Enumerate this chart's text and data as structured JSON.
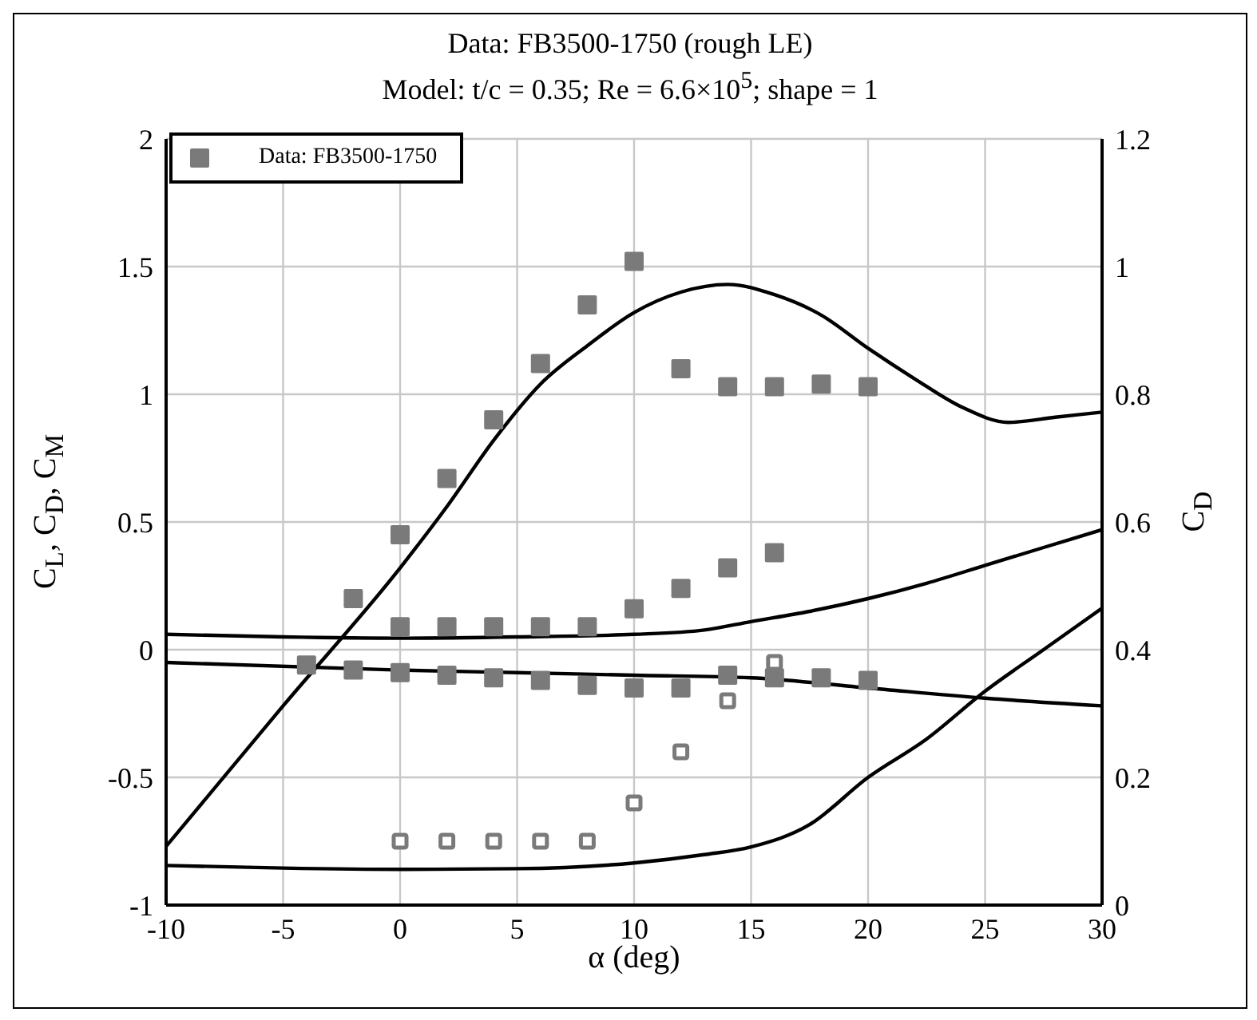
{
  "chart_data": {
    "type": "scatter",
    "title": "Data: FB3500-1750 (rough LE)",
    "subtitle": "Model: t/c = 0.35; Re = 6.6×10$^{5}$; shape = 1",
    "xlabel": "α (deg)",
    "ylabel": "C$_{L}$, C$_{D}$, C$_{M}$",
    "y2label": "C$_{D}$",
    "xlim": [
      -10,
      30
    ],
    "xticks": [
      -10,
      -5,
      0,
      5,
      10,
      15,
      20,
      25,
      30
    ],
    "ylim": [
      -1,
      2
    ],
    "yticks": [
      -1,
      -0.5,
      0,
      0.5,
      1,
      1.5,
      2
    ],
    "y2lim": [
      0,
      1.2
    ],
    "y2ticks": [
      0,
      0.2,
      0.4,
      0.6,
      0.8,
      1,
      1.2
    ],
    "grid": true,
    "legend": "top left",
    "series": [
      {
        "name": "Data: FB3500-1750",
        "marker": "square",
        "color": "#7a7a7a",
        "x": [
          -2,
          0,
          2,
          4,
          6,
          8,
          10,
          12,
          14,
          16,
          18,
          20
        ],
        "values": [
          0.2,
          0.45,
          0.67,
          0.9,
          1.12,
          1.35,
          1.52,
          1.1,
          1.03,
          1.03,
          1.04,
          1.03
        ]
      },
      {
        "marker": "square",
        "color": "#7a7a7a",
        "x": [
          0,
          2,
          4,
          6,
          8,
          10,
          12,
          14,
          16
        ],
        "values": [
          0.09,
          0.09,
          0.09,
          0.09,
          0.09,
          0.16,
          0.24,
          0.32,
          0.38
        ]
      },
      {
        "marker": "square",
        "color": "#7a7a7a",
        "x": [
          -4,
          -2,
          0,
          2,
          4,
          6,
          8,
          10,
          12,
          14,
          16,
          18,
          20
        ],
        "values": [
          -0.06,
          -0.08,
          -0.09,
          -0.1,
          -0.11,
          -0.12,
          -0.14,
          -0.15,
          -0.15,
          -0.1,
          -0.11,
          -0.11,
          -0.12
        ]
      },
      {
        "marker": "square",
        "color": "#7a7a7a",
        "axis": "y2",
        "x": [
          0,
          2,
          4,
          6,
          8,
          10,
          12,
          14,
          16
        ],
        "values": [
          0.1,
          0.1,
          0.1,
          0.1,
          0.1,
          0.16,
          0.24,
          0.32,
          0.38
        ]
      },
      {
        "type": "line",
        "marker": "none",
        "color": "#000000",
        "x": [
          -10,
          -5,
          0,
          2,
          4,
          6,
          8,
          10,
          12,
          14,
          16,
          18,
          20,
          22,
          24,
          26,
          28,
          30
        ],
        "values": [
          -0.77,
          -0.22,
          0.32,
          0.56,
          0.82,
          1.04,
          1.19,
          1.32,
          1.4,
          1.43,
          1.39,
          1.31,
          1.18,
          1.06,
          0.95,
          0.89,
          0.91,
          0.93
        ]
      },
      {
        "type": "line",
        "marker": "none",
        "color": "#000000",
        "x": [
          -10,
          -5,
          0,
          5,
          10,
          13,
          15,
          17.5,
          20,
          22.5,
          25,
          27.5,
          30
        ],
        "values": [
          0.06,
          0.05,
          0.045,
          0.05,
          0.06,
          0.077,
          0.11,
          0.15,
          0.2,
          0.26,
          0.33,
          0.4,
          0.47
        ]
      },
      {
        "type": "line",
        "marker": "none",
        "color": "#000000",
        "x": [
          -10,
          0,
          5,
          10,
          15,
          20,
          25,
          30
        ],
        "values": [
          -0.05,
          -0.08,
          -0.09,
          -0.1,
          -0.11,
          -0.15,
          -0.19,
          -0.22
        ]
      },
      {
        "type": "line",
        "marker": "none",
        "color": "#000000",
        "axis": "y2",
        "x": [
          -10,
          -5,
          0,
          5,
          10,
          13,
          15,
          17.5,
          20,
          22.5,
          25,
          27.5,
          30
        ],
        "values": [
          0.062,
          0.058,
          0.056,
          0.057,
          0.066,
          0.079,
          0.091,
          0.126,
          0.2,
          0.26,
          0.335,
          0.4,
          0.465
        ]
      }
    ]
  }
}
